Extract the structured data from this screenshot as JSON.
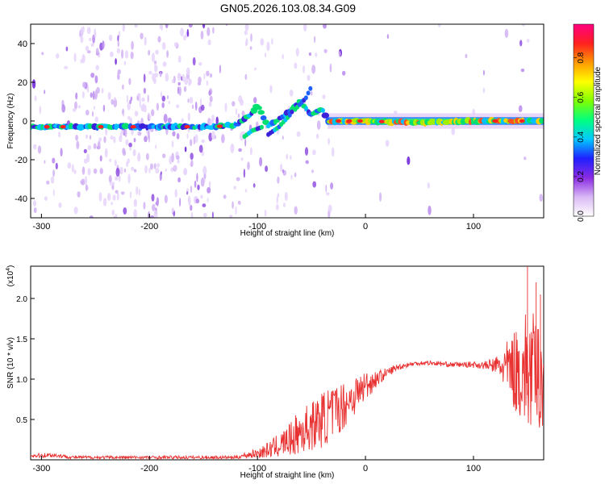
{
  "title": "GN05.2026.103.08.34.G09",
  "spectrogram": {
    "type": "heatmap",
    "xlabel": "Height of straight line (km)",
    "ylabel": "Frequency (Hz)",
    "xlim": [
      -310,
      165
    ],
    "ylim": [
      -50,
      50
    ],
    "xticks": [
      -300,
      -200,
      -100,
      0,
      100
    ],
    "yticks": [
      -40,
      -20,
      0,
      20,
      40
    ],
    "grid": false,
    "colorbar": {
      "label": "Normalized spectral amplitude",
      "range": [
        0,
        0.97
      ],
      "ticks": [
        "0.0",
        "0.2",
        "0.4",
        "0.6",
        "0.8"
      ],
      "tick_values": [
        0,
        0.2,
        0.4,
        0.6,
        0.8
      ],
      "colors": [
        "#ffffff",
        "#d9b8f5",
        "#8a2be2",
        "#2020ff",
        "#00c8ff",
        "#00ff80",
        "#80ff00",
        "#ffff00",
        "#ff9900",
        "#ff2020",
        "#ff0080"
      ]
    },
    "carrier": [
      [
        -310,
        -3
      ],
      [
        -200,
        -3
      ],
      [
        -140,
        -3
      ],
      [
        -120,
        -2
      ],
      [
        -105,
        4
      ],
      [
        -100,
        8
      ],
      [
        -90,
        -3
      ],
      [
        -70,
        5
      ],
      [
        -60,
        10
      ],
      [
        -50,
        3
      ],
      [
        -40,
        6
      ],
      [
        -35,
        0
      ],
      [
        0,
        0
      ],
      [
        50,
        -1
      ],
      [
        100,
        0
      ],
      [
        165,
        0
      ]
    ],
    "branches": [
      [
        [
          -112,
          -8
        ],
        [
          -105,
          -5
        ],
        [
          -95,
          -3
        ]
      ],
      [
        [
          -90,
          -7
        ],
        [
          -80,
          -3
        ],
        [
          -70,
          3
        ],
        [
          -62,
          10
        ]
      ],
      [
        [
          -65,
          6
        ],
        [
          -55,
          12
        ],
        [
          -50,
          18
        ]
      ]
    ]
  },
  "snr": {
    "type": "line",
    "xlabel": "Height of straight line (km)",
    "ylabel": "SNR (10 * v/v)",
    "yscale_label": "(x10",
    "yscale_exp": "4",
    "xlim": [
      -310,
      165
    ],
    "ylim": [
      0,
      2.4
    ],
    "xticks": [
      -300,
      -200,
      -100,
      0,
      100
    ],
    "yticks": [
      "0.5",
      "1.0",
      "1.5",
      "2.0"
    ],
    "ytick_values": [
      0.5,
      1.0,
      1.5,
      2.0
    ],
    "color": "#e83030",
    "series": [
      {
        "x": [
          -310,
          -290,
          -270,
          -250,
          -230,
          -210,
          -190,
          -170,
          -150,
          -130,
          -120,
          -110,
          -100,
          -90,
          -80,
          -70,
          -60,
          -50,
          -40,
          -30,
          -20,
          -10,
          0,
          10,
          20,
          30,
          40,
          50,
          60,
          70,
          80,
          90,
          100,
          110,
          120,
          130,
          140,
          150,
          160,
          165
        ],
        "y": [
          0.05,
          0.06,
          0.03,
          0.03,
          0.03,
          0.03,
          0.03,
          0.03,
          0.03,
          0.03,
          0.03,
          0.06,
          0.08,
          0.12,
          0.18,
          0.25,
          0.35,
          0.42,
          0.5,
          0.58,
          0.68,
          0.8,
          0.92,
          1.0,
          1.08,
          1.15,
          1.18,
          1.2,
          1.2,
          1.19,
          1.18,
          1.18,
          1.18,
          1.17,
          1.17,
          1.15,
          1.1,
          1.1,
          1.05,
          1.0
        ],
        "noise": [
          0.03,
          0.03,
          0.02,
          0.02,
          0.02,
          0.02,
          0.02,
          0.02,
          0.02,
          0.02,
          0.02,
          0.04,
          0.06,
          0.1,
          0.15,
          0.2,
          0.3,
          0.3,
          0.35,
          0.35,
          0.3,
          0.25,
          0.2,
          0.1,
          0.06,
          0.04,
          0.03,
          0.03,
          0.03,
          0.03,
          0.03,
          0.03,
          0.04,
          0.05,
          0.1,
          0.3,
          0.55,
          0.8,
          0.7,
          0.6
        ]
      }
    ]
  }
}
